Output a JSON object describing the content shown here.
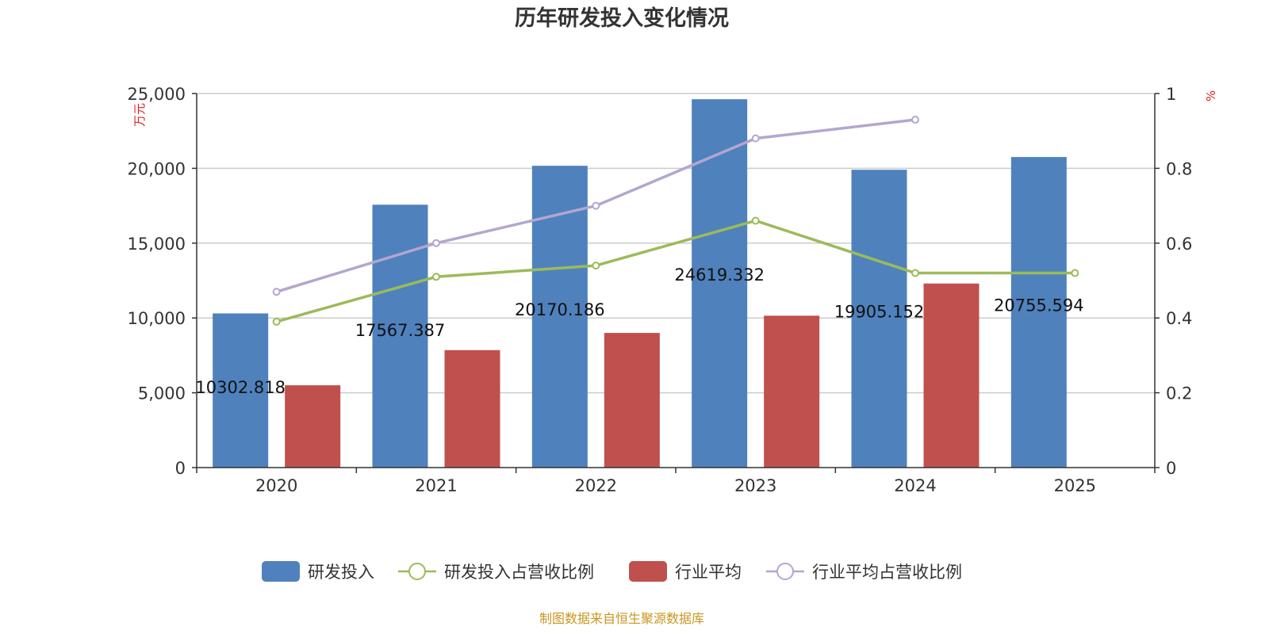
{
  "chart_data": {
    "type": "bar",
    "title": "历年研发投入变化情况",
    "categories": [
      "2020",
      "2021",
      "2022",
      "2023",
      "2024",
      "2025"
    ],
    "y_left": {
      "unit": "万元",
      "min": 0,
      "max": 25000,
      "ticks": [
        0,
        5000,
        10000,
        15000,
        20000,
        25000
      ],
      "tick_labels": [
        "0",
        "5,000",
        "10,000",
        "15,000",
        "20,000",
        "25,000"
      ]
    },
    "y_right": {
      "unit": "%",
      "min": 0,
      "max": 1,
      "ticks": [
        0,
        0.2,
        0.4,
        0.6,
        0.8,
        1
      ],
      "tick_labels": [
        "0",
        "0.2",
        "0.4",
        "0.6",
        "0.8",
        "1"
      ]
    },
    "grid": true,
    "legend_position": "bottom",
    "series": [
      {
        "name": "研发投入",
        "type": "bar",
        "axis": "left",
        "color": "#4f81bd",
        "values": [
          10302.818,
          17567.387,
          20170.186,
          24619.332,
          19905.152,
          20755.594
        ],
        "labels": [
          "10302.818",
          "17567.387",
          "20170.186",
          "24619.332",
          "19905.152",
          "20755.594"
        ]
      },
      {
        "name": "研发投入占营收比例",
        "type": "line",
        "axis": "right",
        "color": "#9bbb59",
        "values": [
          0.39,
          0.51,
          0.54,
          0.66,
          0.52,
          0.52
        ]
      },
      {
        "name": "行业平均",
        "type": "bar",
        "axis": "left",
        "color": "#c0504d",
        "values": [
          5500,
          7850,
          9000,
          10150,
          12300,
          null
        ]
      },
      {
        "name": "行业平均占营收比例",
        "type": "line",
        "axis": "right",
        "color": "#b3a6cf",
        "values": [
          0.47,
          0.6,
          0.7,
          0.88,
          0.93,
          null
        ]
      }
    ]
  },
  "source_note": "制图数据来自恒生聚源数据库"
}
